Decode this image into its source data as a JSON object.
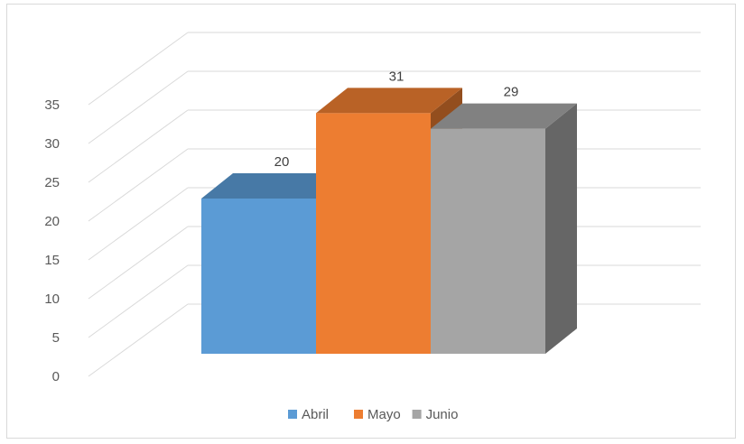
{
  "chart_data": {
    "type": "bar",
    "categories": [
      "Abril",
      "Mayo",
      "Junio"
    ],
    "values": [
      20,
      31,
      29
    ],
    "colors": {
      "Abril": "#5b9bd5",
      "Mayo": "#ed7d31",
      "Junio": "#a5a5a5"
    },
    "ylim": [
      0,
      35
    ],
    "yticks": [
      "0",
      "5",
      "10",
      "15",
      "20",
      "25",
      "30",
      "35"
    ],
    "data_labels": [
      "20",
      "31",
      "29"
    ],
    "legend": {
      "position": "bottom",
      "entries": [
        "Abril",
        "Mayo",
        "Junio"
      ]
    },
    "grid": true,
    "style": "3d-column"
  }
}
